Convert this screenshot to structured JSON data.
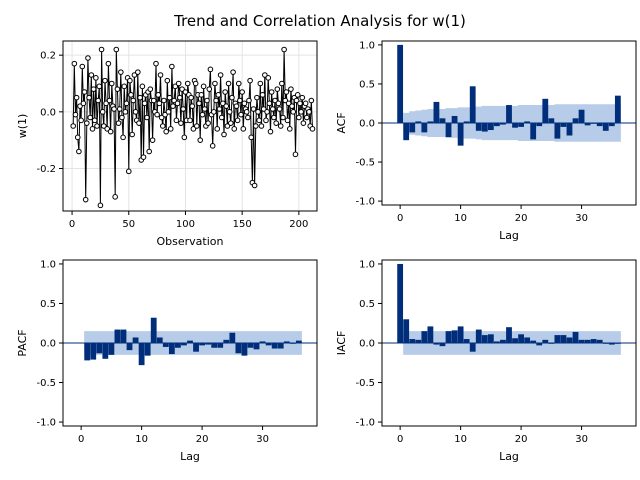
{
  "title": "Trend and Correlation Analysis for w(1)",
  "chart_data": [
    {
      "id": "trend",
      "type": "line",
      "xlabel": "Observation",
      "ylabel": "w(1)",
      "xlim": [
        -8,
        216
      ],
      "ylim": [
        -0.35,
        0.25
      ],
      "xticks": [
        0,
        50,
        100,
        150,
        200
      ],
      "yticks": [
        -0.2,
        0.0,
        0.2
      ],
      "grid": true,
      "marker": "open-circle",
      "x_start": 1,
      "x_step": 1,
      "y": [
        -0.05,
        0.17,
        -0.01,
        0.05,
        -0.09,
        -0.14,
        0.02,
        -0.03,
        0.16,
        0.03,
        0.07,
        -0.31,
        -0.04,
        0.19,
        0.05,
        -0.02,
        0.13,
        -0.06,
        0.08,
        -0.03,
        0.12,
        -0.05,
        0.04,
        0.09,
        -0.33,
        0.22,
        0.0,
        -0.05,
        0.11,
        0.03,
        -0.06,
        0.17,
        0.04,
        -0.07,
        0.1,
        0.02,
        0.01,
        -0.3,
        0.22,
        0.08,
        -0.04,
        0.01,
        0.14,
        -0.02,
        -0.09,
        0.09,
        0.0,
        0.03,
        0.12,
        -0.21,
        0.11,
        0.06,
        -0.08,
        0.04,
        0.13,
        0.0,
        -0.03,
        0.14,
        -0.04,
        0.05,
        -0.17,
        0.09,
        -0.16,
        0.03,
        0.06,
        -0.02,
        0.07,
        -0.14,
        0.08,
        0.04,
        -0.1,
        0.04,
        0.0,
        0.17,
        -0.01,
        0.06,
        0.03,
        0.13,
        -0.02,
        -0.05,
        0.04,
        -0.01,
        -0.07,
        0.11,
        0.0,
        0.05,
        -0.06,
        0.16,
        0.02,
        0.04,
        0.09,
        -0.03,
        0.03,
        0.1,
        0.05,
        -0.04,
        0.08,
        0.01,
        -0.09,
        0.07,
        -0.03,
        0.1,
        0.06,
        -0.03,
        0.05,
        0.02,
        -0.06,
        0.11,
        0.1,
        -0.05,
        0.06,
        0.03,
        -0.1,
        0.06,
        -0.01,
        0.09,
        0.01,
        -0.05,
        0.04,
        -0.04,
        0.08,
        0.15,
        -0.01,
        -0.12,
        0.0,
        0.1,
        0.04,
        -0.06,
        0.06,
        0.01,
        0.13,
        -0.02,
        0.03,
        -0.08,
        0.07,
        0.02,
        -0.05,
        0.1,
        0.0,
        -0.04,
        0.05,
        0.14,
        -0.06,
        0.03,
        0.02,
        -0.03,
        0.1,
        0.04,
        -0.01,
        0.07,
        -0.06,
        0.03,
        0.01,
        0.0,
        -0.02,
        0.04,
        0.11,
        -0.09,
        -0.25,
        0.01,
        -0.26,
        -0.05,
        0.05,
        0.0,
        -0.03,
        0.1,
        -0.05,
        0.06,
        0.01,
        0.13,
        -0.03,
        0.0,
        0.12,
        0.03,
        -0.07,
        0.07,
        0.01,
        -0.02,
        0.04,
        -0.04,
        0.08,
        0.03,
        0.01,
        -0.05,
        0.1,
        -0.02,
        0.22,
        0.04,
        0.07,
        -0.03,
        0.03,
        -0.06,
        0.08,
        0.02,
        0.0,
        0.05,
        -0.15,
        0.04,
        0.06,
        -0.02,
        0.03,
        0.0,
        0.05,
        -0.04,
        0.02,
        0.03,
        -0.02,
        0.01,
        0.0,
        -0.05,
        0.04,
        -0.06
      ]
    },
    {
      "id": "acf",
      "type": "bar",
      "xlabel": "Lag",
      "ylabel": "ACF",
      "xlim": [
        -3,
        39
      ],
      "ylim": [
        -1.05,
        1.05
      ],
      "xticks": [
        0,
        10,
        20,
        30
      ],
      "yticks": [
        -1.0,
        -0.5,
        0.0,
        0.5,
        1.0
      ],
      "lags": [
        0,
        1,
        2,
        3,
        4,
        5,
        6,
        7,
        8,
        9,
        10,
        11,
        12,
        13,
        14,
        15,
        16,
        17,
        18,
        19,
        20,
        21,
        22,
        23,
        24,
        25,
        26,
        27,
        28,
        29,
        30,
        31,
        32,
        33,
        34,
        35,
        36
      ],
      "values": [
        1.0,
        -0.22,
        -0.12,
        0.02,
        -0.12,
        0.02,
        0.27,
        0.06,
        -0.18,
        0.09,
        -0.29,
        0.02,
        0.47,
        -0.1,
        -0.11,
        -0.09,
        -0.04,
        -0.02,
        0.23,
        -0.06,
        -0.05,
        0.02,
        -0.21,
        -0.04,
        0.31,
        0.06,
        -0.2,
        -0.05,
        -0.16,
        0.06,
        0.17,
        -0.03,
        0.0,
        -0.04,
        -0.1,
        -0.04,
        0.35
      ],
      "band": [
        0.13,
        0.15,
        0.16,
        0.17,
        0.18,
        0.18,
        0.18,
        0.19,
        0.19,
        0.2,
        0.2,
        0.2,
        0.21,
        0.22,
        0.22,
        0.22,
        0.22,
        0.22,
        0.22,
        0.23,
        0.23,
        0.23,
        0.23,
        0.23,
        0.23,
        0.24,
        0.24,
        0.24,
        0.24,
        0.24,
        0.24,
        0.24,
        0.24,
        0.24,
        0.24,
        0.24
      ]
    },
    {
      "id": "pacf",
      "type": "bar",
      "xlabel": "Lag",
      "ylabel": "PACF",
      "xlim": [
        -3,
        39
      ],
      "ylim": [
        -1.05,
        1.05
      ],
      "xticks": [
        0,
        10,
        20,
        30
      ],
      "yticks": [
        -1.0,
        -0.5,
        0.0,
        0.5,
        1.0
      ],
      "lags": [
        1,
        2,
        3,
        4,
        5,
        6,
        7,
        8,
        9,
        10,
        11,
        12,
        13,
        14,
        15,
        16,
        17,
        18,
        19,
        20,
        21,
        22,
        23,
        24,
        25,
        26,
        27,
        28,
        29,
        30,
        31,
        32,
        33,
        34,
        35,
        36
      ],
      "values": [
        -0.22,
        -0.21,
        -0.13,
        -0.2,
        -0.15,
        0.17,
        0.17,
        -0.09,
        0.07,
        -0.28,
        -0.16,
        0.32,
        0.07,
        -0.05,
        -0.14,
        -0.06,
        -0.03,
        0.03,
        -0.11,
        -0.03,
        -0.02,
        -0.06,
        -0.06,
        0.04,
        0.13,
        -0.13,
        -0.16,
        -0.06,
        -0.08,
        0.02,
        -0.03,
        -0.07,
        -0.07,
        0.02,
        -0.01,
        0.03
      ],
      "band": 0.15
    },
    {
      "id": "iacf",
      "type": "bar",
      "xlabel": "Lag",
      "ylabel": "IACF",
      "xlim": [
        -3,
        39
      ],
      "ylim": [
        -1.05,
        1.05
      ],
      "xticks": [
        0,
        10,
        20,
        30
      ],
      "yticks": [
        -1.0,
        -0.5,
        0.0,
        0.5,
        1.0
      ],
      "lags": [
        0,
        1,
        2,
        3,
        4,
        5,
        6,
        7,
        8,
        9,
        10,
        11,
        12,
        13,
        14,
        15,
        16,
        17,
        18,
        19,
        20,
        21,
        22,
        23,
        24,
        25,
        26,
        27,
        28,
        29,
        30,
        31,
        32,
        33,
        34,
        35,
        36
      ],
      "values": [
        1.0,
        0.3,
        0.05,
        0.04,
        0.15,
        0.21,
        -0.02,
        -0.04,
        0.15,
        0.16,
        0.21,
        0.05,
        -0.11,
        0.17,
        0.1,
        0.11,
        0.02,
        0.04,
        0.2,
        0.06,
        0.11,
        0.07,
        0.03,
        -0.03,
        0.04,
        -0.01,
        0.1,
        0.1,
        0.07,
        0.14,
        0.04,
        0.04,
        0.05,
        0.04,
        -0.01,
        -0.02,
        -0.01
      ],
      "band": 0.15
    }
  ]
}
